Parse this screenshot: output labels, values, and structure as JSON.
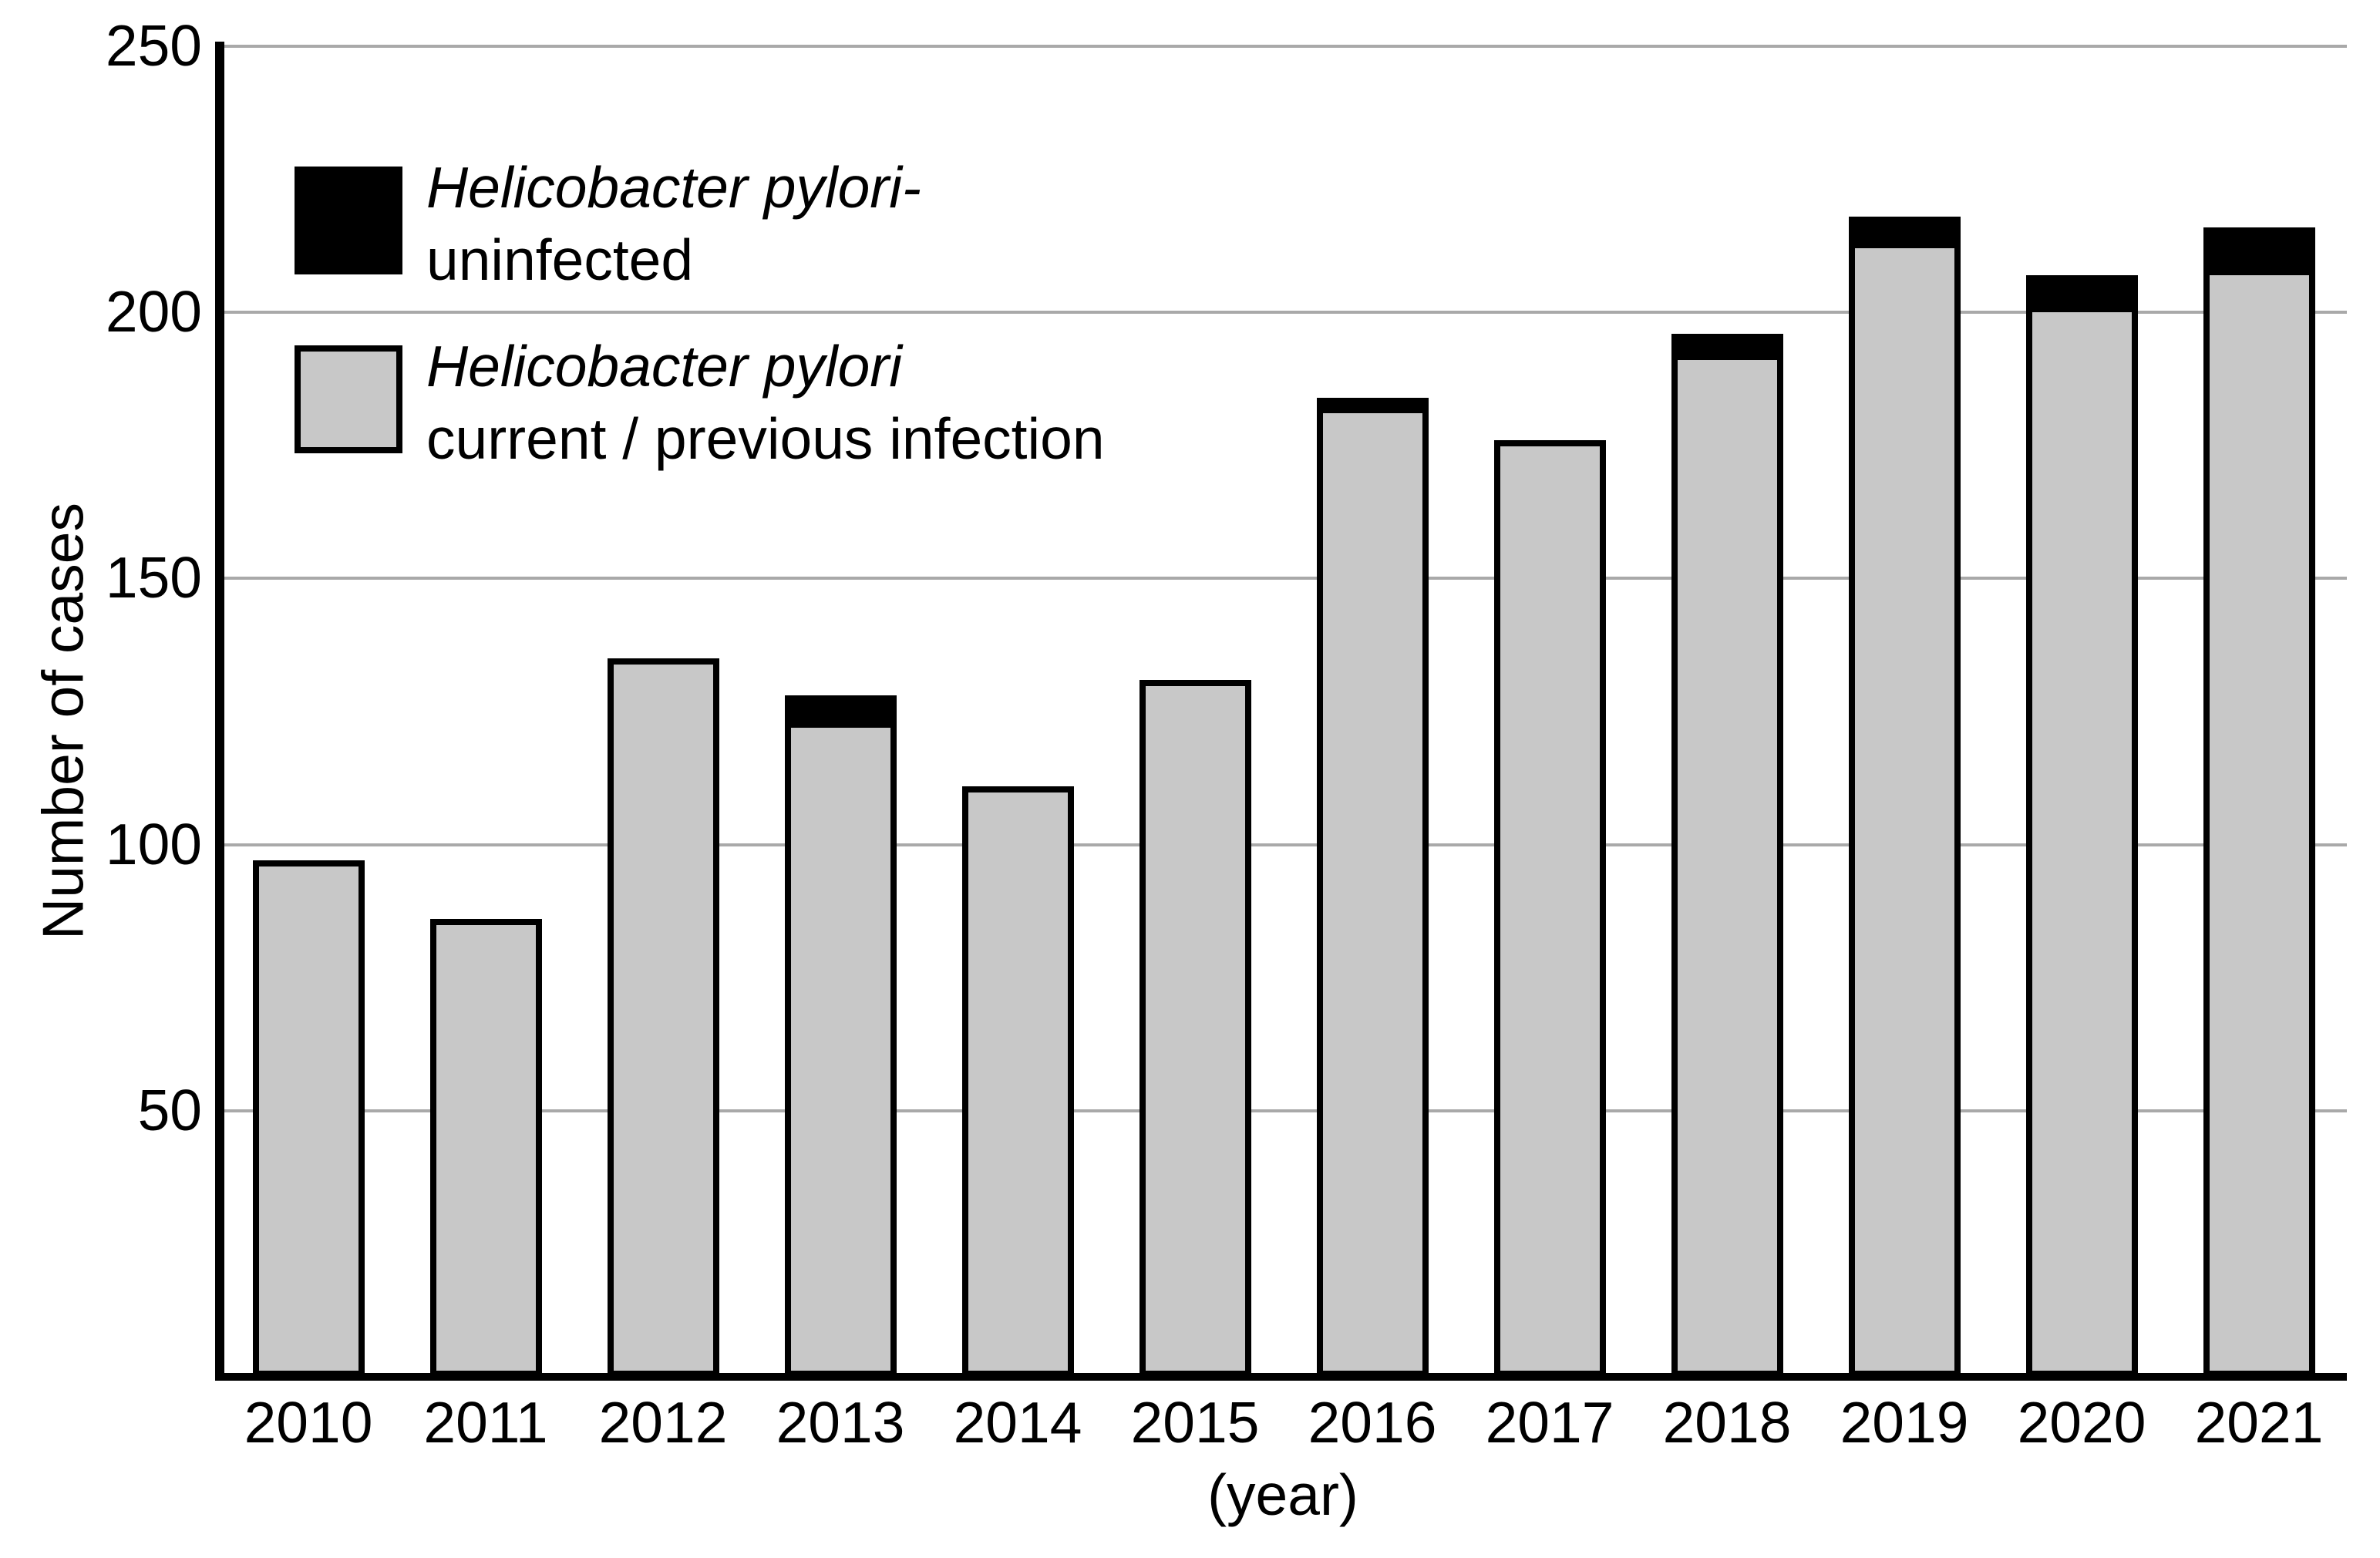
{
  "chart_data": {
    "type": "bar",
    "stacked": true,
    "title": "",
    "xlabel": "(year)",
    "ylabel": "Number of cases",
    "categories": [
      "2010",
      "2011",
      "2012",
      "2013",
      "2014",
      "2015",
      "2016",
      "2017",
      "2018",
      "2019",
      "2020",
      "2021"
    ],
    "series": [
      {
        "name": "Helicobacter pylori current / previous infection",
        "color": "#c8c8c8",
        "values": [
          97,
          86,
          135,
          122,
          111,
          131,
          181,
          176,
          191,
          212,
          200,
          207
        ]
      },
      {
        "name": "Helicobacter pylori-uninfected",
        "color": "#000000",
        "values": [
          0,
          0,
          0,
          6,
          0,
          0,
          3,
          0,
          5,
          6,
          7,
          9
        ]
      }
    ],
    "totals": [
      97,
      86,
      135,
      128,
      111,
      131,
      184,
      176,
      196,
      218,
      207,
      216
    ],
    "yticks": [
      50,
      100,
      150,
      200,
      250
    ],
    "ylim": [
      0,
      250
    ],
    "grid": "horizontal",
    "legend_position": "top-left",
    "legend": {
      "entries": [
        {
          "line1_italic": "Helicobacter pylori-",
          "line2": "uninfected",
          "color": "#000000"
        },
        {
          "line1_italic": "Helicobacter pylori",
          "line2": "current / previous infection",
          "color": "#c8c8c8"
        }
      ]
    }
  },
  "styles": {
    "bar_fill": "#c8c8c8",
    "bar_stroke": "#000000",
    "grid_color": "#a9a9a9",
    "axis_color": "#000000",
    "background": "#ffffff",
    "text_color": "#000000"
  }
}
